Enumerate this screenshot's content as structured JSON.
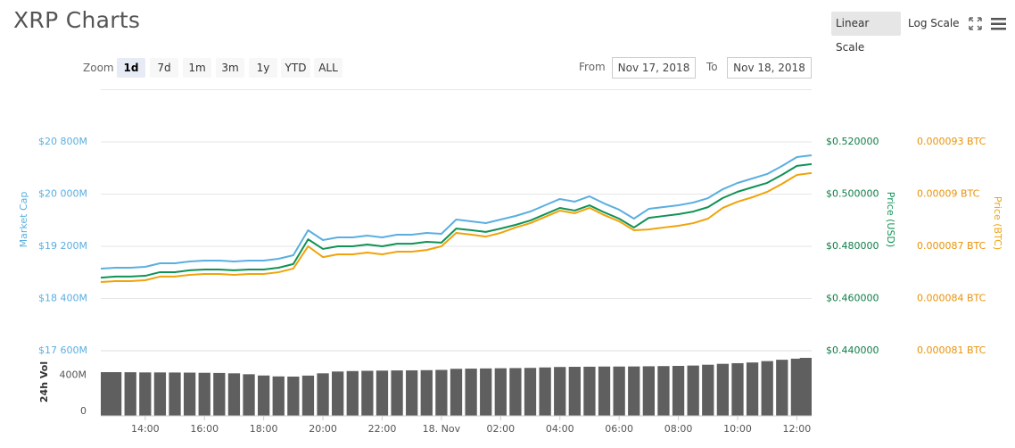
{
  "header": {
    "title": "XRP Charts",
    "scale_buttons": [
      "Linear Scale",
      "Log Scale"
    ]
  },
  "controls": {
    "zoom_label": "Zoom",
    "zoom_options": [
      "1d",
      "7d",
      "1m",
      "3m",
      "1y",
      "YTD",
      "ALL"
    ],
    "from_label": "From",
    "from_date": "Nov 17, 2018",
    "to_label": "To",
    "to_date": "Nov 18, 2018"
  },
  "chart_data": [
    {
      "type": "line",
      "log_scale": false,
      "grid": true,
      "categories": [
        null,
        null,
        null,
        "14:00",
        null,
        null,
        null,
        "16:00",
        null,
        null,
        null,
        "18:00",
        null,
        null,
        null,
        "20:00",
        null,
        null,
        null,
        "22:00",
        null,
        null,
        null,
        "18. Nov",
        null,
        null,
        null,
        "02:00",
        null,
        null,
        null,
        "04:00",
        null,
        null,
        null,
        "06:00",
        null,
        null,
        null,
        "08:00",
        null,
        null,
        null,
        "10:00",
        null,
        null,
        null,
        "12:00",
        null
      ],
      "ylim": [
        17600,
        21600
      ],
      "yticks": [
        {
          "value": 17600,
          "label": "$17 600M"
        },
        {
          "value": 18400,
          "label": "$18 400M"
        },
        {
          "value": 19200,
          "label": "$19 200M"
        },
        {
          "value": 20000,
          "label": "$20 000M"
        },
        {
          "value": 20800,
          "label": "$20 800M"
        }
      ],
      "y2lim": [
        0.44,
        0.54
      ],
      "y2ticks": [
        {
          "value": 0.44,
          "label": "$0.440000"
        },
        {
          "value": 0.46,
          "label": "$0.460000"
        },
        {
          "value": 0.48,
          "label": "$0.480000"
        },
        {
          "value": 0.5,
          "label": "$0.500000"
        },
        {
          "value": 0.52,
          "label": "$0.520000"
        }
      ],
      "y3lim": [
        8.1e-05,
        9.6e-05
      ],
      "y3ticks": [
        {
          "value": 8.1e-05,
          "label": "0.000081 BTC"
        },
        {
          "value": 8.4e-05,
          "label": "0.000084 BTC"
        },
        {
          "value": 8.7e-05,
          "label": "0.000087 BTC"
        },
        {
          "value": 9e-05,
          "label": "0.00009 BTC"
        },
        {
          "value": 9.3e-05,
          "label": "0.000093 BTC"
        }
      ],
      "series": [
        {
          "name": "Market Cap",
          "axis": "y",
          "color": "#5aafe0",
          "values": [
            18858,
            18872,
            18872,
            18885,
            18940,
            18940,
            18968,
            18981,
            18981,
            18968,
            18981,
            18981,
            19009,
            19063,
            19446,
            19296,
            19337,
            19337,
            19364,
            19337,
            19378,
            19378,
            19405,
            19391,
            19610,
            19583,
            19556,
            19610,
            19665,
            19733,
            19829,
            19925,
            19884,
            19966,
            19856,
            19761,
            19624,
            19774,
            19802,
            19829,
            19870,
            19938,
            20075,
            20171,
            20239,
            20308,
            20431,
            20567,
            20595
          ]
        },
        {
          "name": "Price (USD)",
          "axis": "y2",
          "color": "#0f9255",
          "values": [
            0.468,
            0.4684,
            0.4684,
            0.4687,
            0.4701,
            0.4701,
            0.4708,
            0.4711,
            0.4711,
            0.4708,
            0.4711,
            0.4711,
            0.4718,
            0.4732,
            0.4827,
            0.479,
            0.48,
            0.48,
            0.4807,
            0.48,
            0.481,
            0.481,
            0.4817,
            0.4814,
            0.4868,
            0.4862,
            0.4855,
            0.4868,
            0.4882,
            0.4899,
            0.4923,
            0.4947,
            0.4937,
            0.4957,
            0.493,
            0.4906,
            0.4872,
            0.4909,
            0.4916,
            0.4923,
            0.4933,
            0.495,
            0.4985,
            0.5009,
            0.5026,
            0.5043,
            0.5074,
            0.5108,
            0.5115
          ]
        },
        {
          "name": "Price (BTC)",
          "axis": "y3",
          "color": "#f0a30a",
          "values": [
            8.495e-05,
            8.5e-05,
            8.5e-05,
            8.505e-05,
            8.526e-05,
            8.526e-05,
            8.536e-05,
            8.541e-05,
            8.541e-05,
            8.536e-05,
            8.541e-05,
            8.541e-05,
            8.551e-05,
            8.572e-05,
            8.7e-05,
            8.638e-05,
            8.654e-05,
            8.654e-05,
            8.664e-05,
            8.654e-05,
            8.669e-05,
            8.669e-05,
            8.679e-05,
            8.7e-05,
            8.777e-05,
            8.767e-05,
            8.756e-05,
            8.777e-05,
            8.808e-05,
            8.833e-05,
            8.869e-05,
            8.905e-05,
            8.89e-05,
            8.921e-05,
            8.879e-05,
            8.844e-05,
            8.792e-05,
            8.797e-05,
            8.808e-05,
            8.818e-05,
            8.833e-05,
            8.859e-05,
            8.921e-05,
            8.956e-05,
            8.982e-05,
            9.013e-05,
            9.059e-05,
            9.11e-05,
            9.121e-05
          ]
        }
      ]
    },
    {
      "type": "bar",
      "ylabel": "24h Vol",
      "color": "#5f5f5f",
      "ylim": [
        0,
        700
      ],
      "yticks": [
        0,
        {
          "value": 400,
          "label": "400M"
        }
      ],
      "values": [
        483,
        483,
        482,
        480,
        480,
        479,
        478,
        476,
        474,
        470,
        460,
        446,
        436,
        434,
        445,
        470,
        490,
        495,
        498,
        500,
        502,
        503,
        505,
        508,
        520,
        522,
        524,
        526,
        528,
        530,
        535,
        540,
        542,
        543,
        545,
        545,
        546,
        548,
        550,
        552,
        556,
        565,
        575,
        582,
        590,
        605,
        620,
        632,
        641
      ]
    }
  ]
}
